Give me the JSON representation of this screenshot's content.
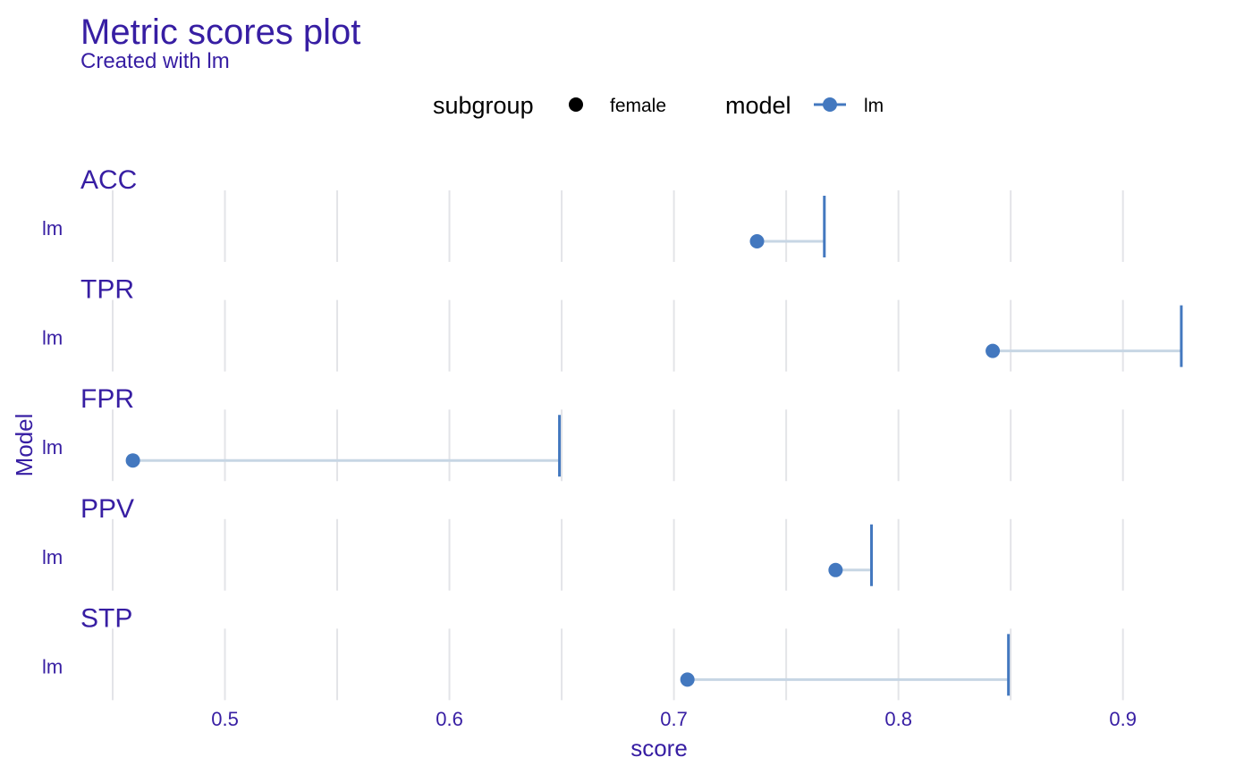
{
  "colors": {
    "text": "#371ea3",
    "legend_text": "#000000",
    "grid": "#e3e4e8",
    "point": "#4378bf",
    "range_line": "#c7d6e4",
    "marker": "#4378bf"
  },
  "chart_data": {
    "type": "scatter",
    "title": "Metric scores plot",
    "subtitle": "Created with lm",
    "xlabel": "score",
    "ylabel": "Model",
    "xlim": [
      0.45,
      0.93
    ],
    "x_ticks": [
      0.5,
      0.6,
      0.7,
      0.8,
      0.9
    ],
    "x_tick_labels": [
      "0.5",
      "0.6",
      "0.7",
      "0.8",
      "0.9"
    ],
    "x_grid": [
      0.45,
      0.5,
      0.55,
      0.6,
      0.65,
      0.7,
      0.75,
      0.8,
      0.85,
      0.9
    ],
    "grid": true,
    "legend": {
      "position": "top",
      "groups": [
        {
          "title": "subgroup",
          "entries": [
            {
              "label": "female",
              "symbol": "point"
            }
          ]
        },
        {
          "title": "model",
          "entries": [
            {
              "label": "lm",
              "symbol": "line-point"
            }
          ]
        }
      ]
    },
    "facets": [
      {
        "metric": "ACC",
        "model": "lm",
        "female_score": 0.737,
        "reference_score": 0.767
      },
      {
        "metric": "TPR",
        "model": "lm",
        "female_score": 0.842,
        "reference_score": 0.926
      },
      {
        "metric": "FPR",
        "model": "lm",
        "female_score": 0.459,
        "reference_score": 0.649
      },
      {
        "metric": "PPV",
        "model": "lm",
        "female_score": 0.772,
        "reference_score": 0.788
      },
      {
        "metric": "STP",
        "model": "lm",
        "female_score": 0.706,
        "reference_score": 0.849
      }
    ]
  }
}
